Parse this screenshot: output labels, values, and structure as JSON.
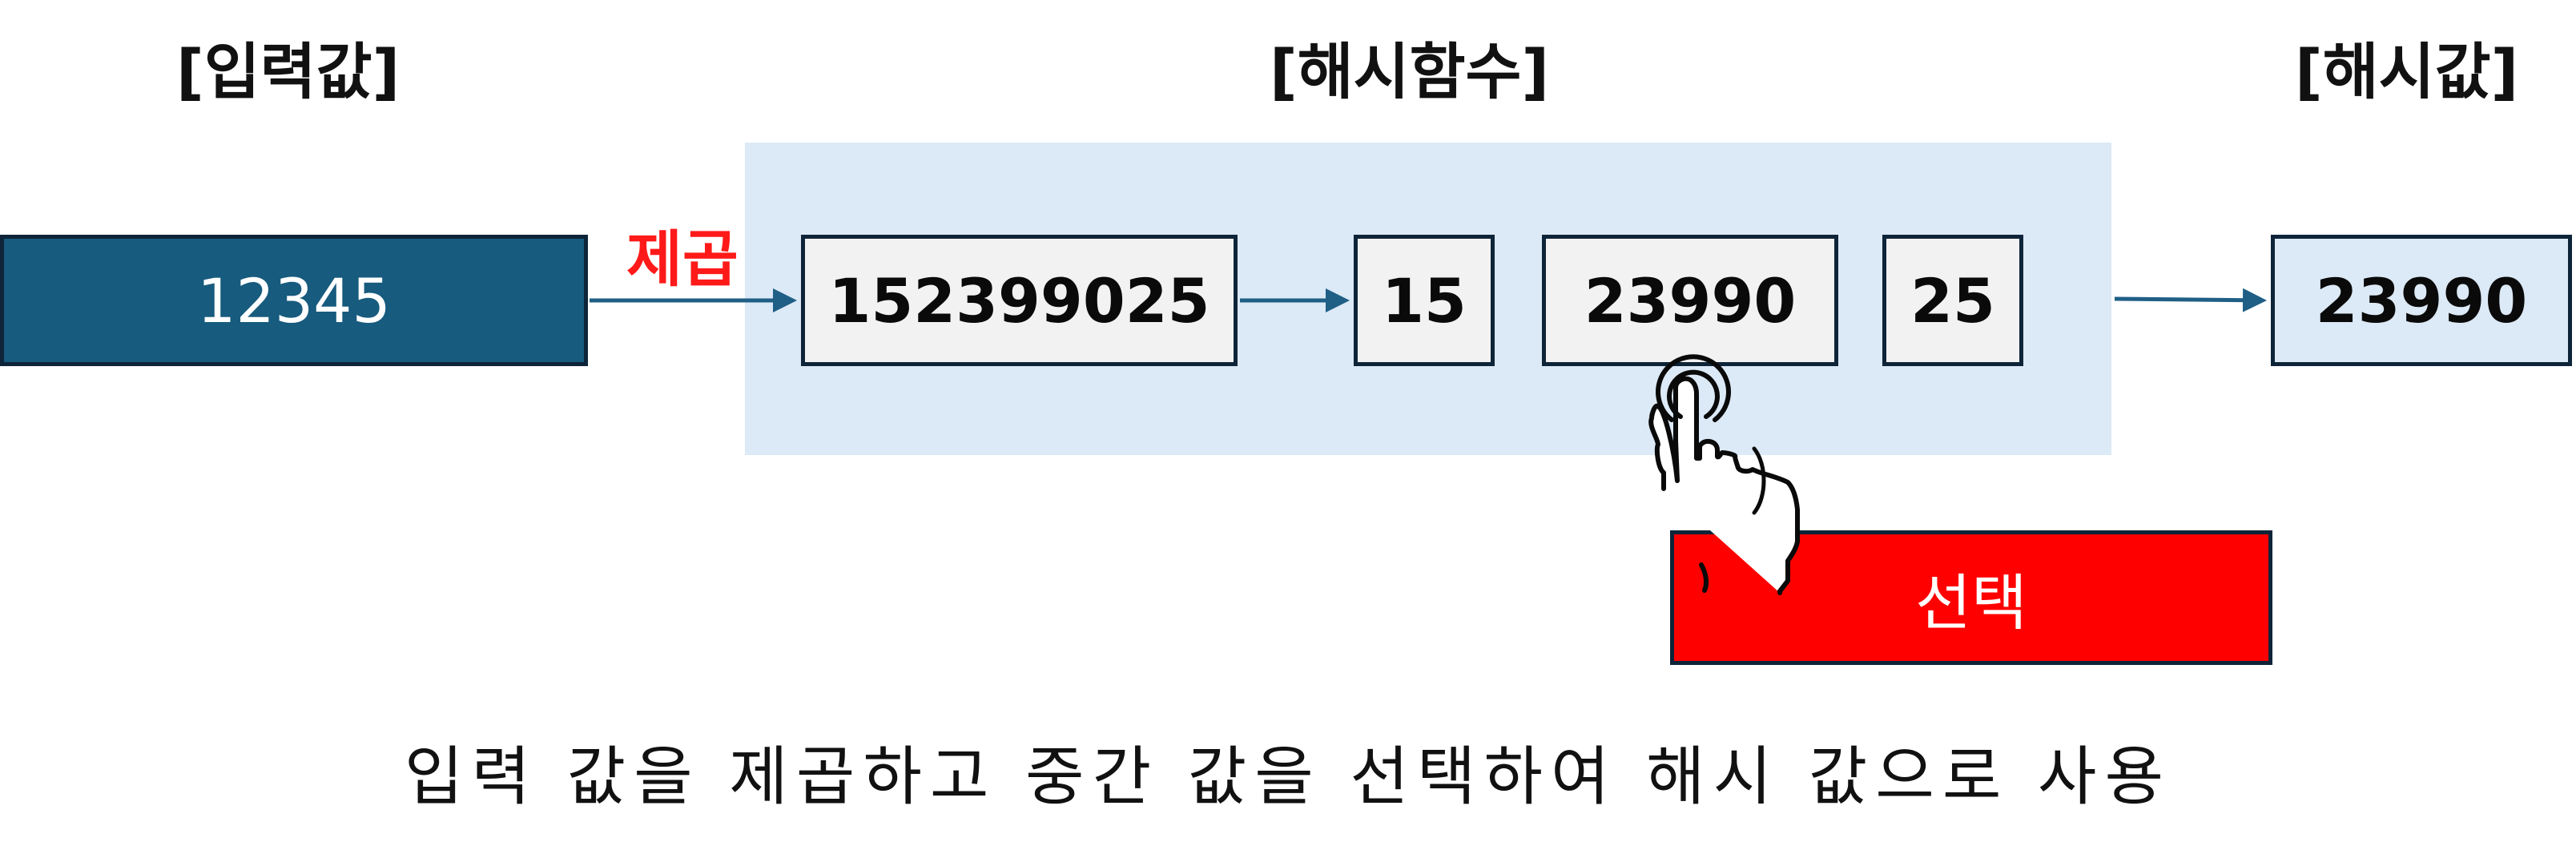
{
  "headers": {
    "input": "[입력값]",
    "hash_function": "[해시함수]",
    "hash_value": "[해시값]"
  },
  "input_value": "12345",
  "operation_label": "제곱",
  "steps": {
    "squared": "152399025",
    "left_part": "15",
    "middle_part": "23990",
    "right_part": "25"
  },
  "output_value": "23990",
  "select_label": "선택",
  "caption": "입력 값을 제곱하고 중간 값을 선택하여 해시 값으로 사용",
  "colors": {
    "input_box": "#175b7e",
    "hash_area": "#dce9f6",
    "step_box": "#f2f2f2",
    "select_box": "#ff0000",
    "operation_label": "#ff1a1a",
    "arrow": "#1f5f86"
  },
  "icons": [
    "pointing-hand-icon"
  ]
}
